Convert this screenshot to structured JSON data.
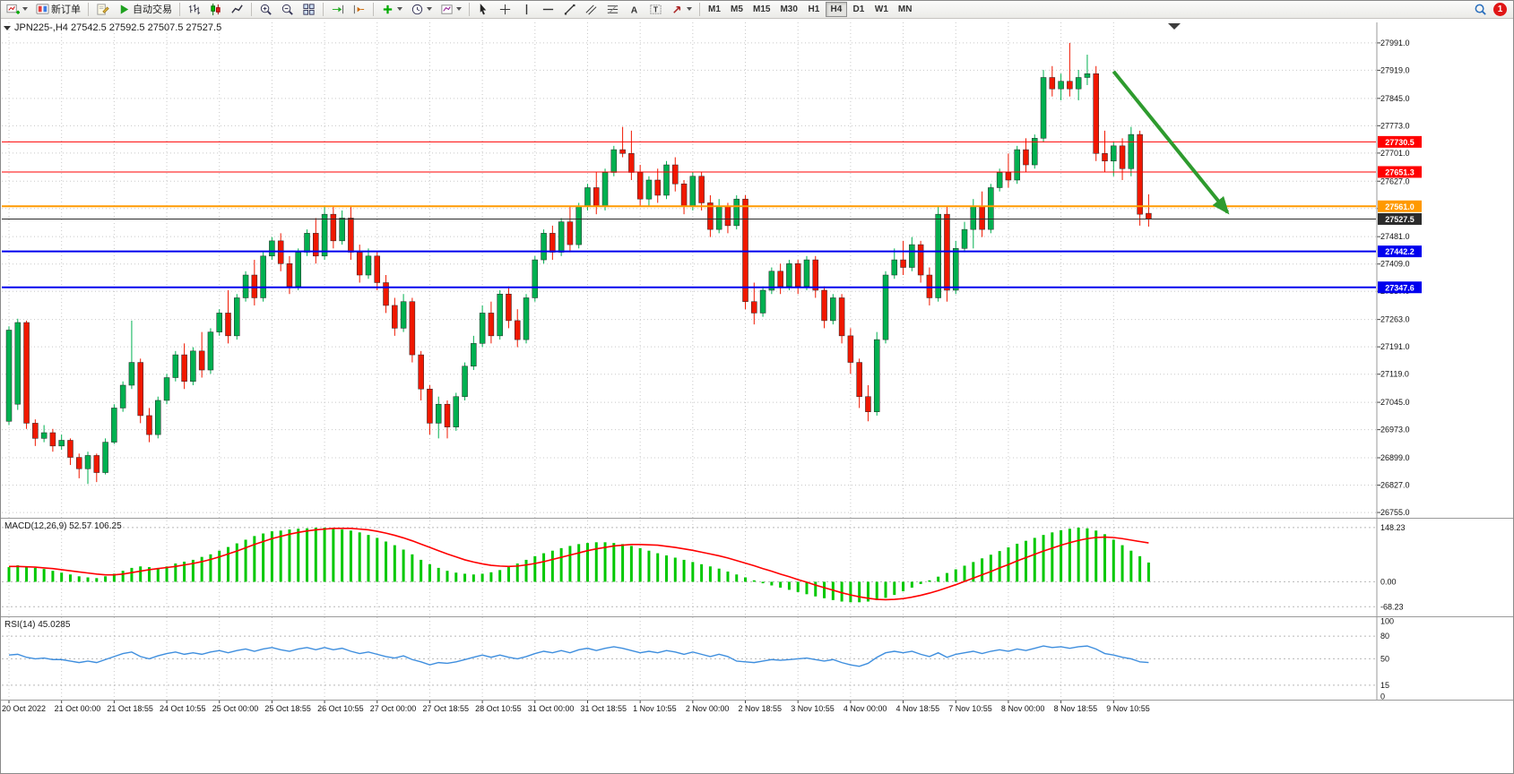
{
  "toolbar": {
    "new_order_label": "新订单",
    "auto_trading_label": "自动交易",
    "text_icon": "A",
    "label_icon": "T",
    "notification_count": "1",
    "timeframes": [
      {
        "label": "M1"
      },
      {
        "label": "M5"
      },
      {
        "label": "M15"
      },
      {
        "label": "M30"
      },
      {
        "label": "H1"
      },
      {
        "label": "H4"
      },
      {
        "label": "D1"
      },
      {
        "label": "W1"
      },
      {
        "label": "MN"
      }
    ]
  },
  "chart": {
    "legend": "JPN225-,H4 27542.5 27592.5 27507.5 27527.5"
  },
  "chart_data": {
    "type": "candlestick",
    "symbol": "JPN225-",
    "period": "H4",
    "ohlc": {
      "open": 27542.5,
      "high": 27592.5,
      "low": 27507.5,
      "close": 27527.5
    },
    "label_step": 6,
    "y_range": {
      "top": 28045,
      "bottom": 26741
    },
    "y_ticks": [
      27991,
      27919,
      27845,
      27773,
      27701,
      27627,
      27555,
      27481,
      27409,
      27337,
      27263,
      27191,
      27119,
      27045,
      26973,
      26899,
      26827,
      26755
    ],
    "h_lines": [
      {
        "price": 27730.5,
        "label": "27730.5",
        "color": "#ff0000",
        "width": 1
      },
      {
        "price": 27651.3,
        "label": "27651.3",
        "color": "#ff0000",
        "width": 1
      },
      {
        "price": 27561.0,
        "label": "27561.0",
        "color": "#ff9900",
        "width": 2
      },
      {
        "price": 27527.5,
        "label": "27527.5",
        "color": "#2b2b2b",
        "width": 1
      },
      {
        "price": 27442.2,
        "label": "27442.2",
        "color": "#0000ee",
        "width": 2
      },
      {
        "price": 27347.6,
        "label": "27347.6",
        "color": "#0000ee",
        "width": 2
      }
    ],
    "arrow": {
      "from_index": 126,
      "from_price": 27916,
      "to_index": 139,
      "to_price": 27545,
      "color": "#2e9b2e"
    },
    "colors": {
      "grid": "#c8c8c8",
      "candle_up": "#00b050",
      "candle_down": "#f01800",
      "macd_histogram": "#00c800",
      "macd_signal": "#ff0000",
      "rsi_line": "#3e8ede"
    },
    "time_labels": [
      "20 Oct 2022",
      "21 Oct 00:00",
      "21 Oct 18:55",
      "24 Oct 10:55",
      "25 Oct 00:00",
      "25 Oct 18:55",
      "26 Oct 10:55",
      "27 Oct 00:00",
      "27 Oct 18:55",
      "28 Oct 10:55",
      "31 Oct 00:00",
      "31 Oct 18:55",
      "1 Nov 10:55",
      "2 Nov 00:00",
      "2 Nov 18:55",
      "3 Nov 10:55",
      "4 Nov 00:00",
      "4 Nov 18:55",
      "7 Nov 10:55",
      "8 Nov 00:00",
      "8 Nov 18:55",
      "9 Nov 10:55"
    ],
    "candles": [
      [
        26995,
        27245,
        26985,
        27235
      ],
      [
        27040,
        27265,
        27025,
        27255
      ],
      [
        27255,
        27260,
        26975,
        26990
      ],
      [
        26990,
        27000,
        26930,
        26950
      ],
      [
        26950,
        26985,
        26940,
        26965
      ],
      [
        26965,
        26975,
        26915,
        26930
      ],
      [
        26930,
        26960,
        26920,
        26945
      ],
      [
        26945,
        26950,
        26880,
        26900
      ],
      [
        26900,
        26910,
        26845,
        26870
      ],
      [
        26870,
        26915,
        26830,
        26905
      ],
      [
        26905,
        26910,
        26835,
        26860
      ],
      [
        26860,
        26950,
        26855,
        26940
      ],
      [
        26940,
        27040,
        26935,
        27030
      ],
      [
        27030,
        27100,
        27020,
        27090
      ],
      [
        27090,
        27260,
        27080,
        27150
      ],
      [
        27150,
        27160,
        26990,
        27010
      ],
      [
        27010,
        27030,
        26940,
        26960
      ],
      [
        26960,
        27060,
        26950,
        27050
      ],
      [
        27050,
        27120,
        27040,
        27110
      ],
      [
        27110,
        27180,
        27100,
        27170
      ],
      [
        27170,
        27200,
        27080,
        27100
      ],
      [
        27100,
        27190,
        27090,
        27180
      ],
      [
        27180,
        27230,
        27110,
        27130
      ],
      [
        27130,
        27240,
        27120,
        27230
      ],
      [
        27230,
        27290,
        27220,
        27280
      ],
      [
        27280,
        27340,
        27200,
        27220
      ],
      [
        27220,
        27330,
        27210,
        27320
      ],
      [
        27320,
        27390,
        27310,
        27380
      ],
      [
        27380,
        27420,
        27300,
        27320
      ],
      [
        27320,
        27440,
        27310,
        27430
      ],
      [
        27430,
        27480,
        27420,
        27470
      ],
      [
        27470,
        27490,
        27390,
        27410
      ],
      [
        27410,
        27430,
        27330,
        27350
      ],
      [
        27350,
        27450,
        27340,
        27440
      ],
      [
        27440,
        27500,
        27430,
        27490
      ],
      [
        27490,
        27530,
        27410,
        27430
      ],
      [
        27430,
        27560,
        27420,
        27540
      ],
      [
        27540,
        27560,
        27450,
        27470
      ],
      [
        27470,
        27550,
        27460,
        27530
      ],
      [
        27530,
        27560,
        27420,
        27440
      ],
      [
        27440,
        27460,
        27360,
        27380
      ],
      [
        27380,
        27450,
        27370,
        27430
      ],
      [
        27430,
        27440,
        27340,
        27360
      ],
      [
        27360,
        27380,
        27280,
        27300
      ],
      [
        27300,
        27320,
        27220,
        27240
      ],
      [
        27240,
        27330,
        27230,
        27310
      ],
      [
        27310,
        27320,
        27150,
        27170
      ],
      [
        27170,
        27180,
        27050,
        27080
      ],
      [
        27080,
        27090,
        26960,
        26990
      ],
      [
        26990,
        27060,
        26950,
        27040
      ],
      [
        27040,
        27050,
        26950,
        26980
      ],
      [
        26980,
        27070,
        26970,
        27060
      ],
      [
        27060,
        27150,
        27050,
        27140
      ],
      [
        27140,
        27220,
        27130,
        27200
      ],
      [
        27200,
        27300,
        27190,
        27280
      ],
      [
        27280,
        27310,
        27200,
        27220
      ],
      [
        27220,
        27340,
        27210,
        27330
      ],
      [
        27330,
        27350,
        27240,
        27260
      ],
      [
        27260,
        27290,
        27190,
        27210
      ],
      [
        27210,
        27330,
        27200,
        27320
      ],
      [
        27320,
        27430,
        27310,
        27420
      ],
      [
        27420,
        27500,
        27410,
        27490
      ],
      [
        27490,
        27510,
        27420,
        27440
      ],
      [
        27440,
        27530,
        27430,
        27520
      ],
      [
        27520,
        27560,
        27440,
        27460
      ],
      [
        27460,
        27570,
        27450,
        27560
      ],
      [
        27560,
        27620,
        27550,
        27610
      ],
      [
        27610,
        27650,
        27540,
        27560
      ],
      [
        27560,
        27660,
        27550,
        27650
      ],
      [
        27650,
        27720,
        27640,
        27710
      ],
      [
        27710,
        27770,
        27690,
        27700
      ],
      [
        27700,
        27760,
        27630,
        27650
      ],
      [
        27650,
        27670,
        27560,
        27580
      ],
      [
        27580,
        27640,
        27560,
        27630
      ],
      [
        27630,
        27660,
        27570,
        27590
      ],
      [
        27590,
        27680,
        27580,
        27670
      ],
      [
        27670,
        27690,
        27600,
        27620
      ],
      [
        27620,
        27630,
        27540,
        27560
      ],
      [
        27560,
        27650,
        27550,
        27640
      ],
      [
        27640,
        27650,
        27550,
        27570
      ],
      [
        27570,
        27590,
        27480,
        27500
      ],
      [
        27500,
        27580,
        27490,
        27560
      ],
      [
        27560,
        27570,
        27490,
        27510
      ],
      [
        27510,
        27590,
        27500,
        27580
      ],
      [
        27580,
        27590,
        27290,
        27310
      ],
      [
        27310,
        27360,
        27250,
        27280
      ],
      [
        27280,
        27350,
        27270,
        27340
      ],
      [
        27340,
        27400,
        27330,
        27390
      ],
      [
        27390,
        27410,
        27330,
        27350
      ],
      [
        27350,
        27420,
        27340,
        27410
      ],
      [
        27410,
        27420,
        27330,
        27350
      ],
      [
        27350,
        27430,
        27340,
        27420
      ],
      [
        27420,
        27430,
        27320,
        27340
      ],
      [
        27340,
        27350,
        27240,
        27260
      ],
      [
        27260,
        27330,
        27250,
        27320
      ],
      [
        27320,
        27330,
        27200,
        27220
      ],
      [
        27220,
        27240,
        27120,
        27150
      ],
      [
        27150,
        27160,
        27030,
        27060
      ],
      [
        27060,
        27090,
        26995,
        27020
      ],
      [
        27020,
        27230,
        27010,
        27210
      ],
      [
        27210,
        27390,
        27200,
        27380
      ],
      [
        27380,
        27450,
        27370,
        27420
      ],
      [
        27420,
        27470,
        27380,
        27400
      ],
      [
        27400,
        27480,
        27390,
        27460
      ],
      [
        27460,
        27470,
        27360,
        27380
      ],
      [
        27380,
        27400,
        27300,
        27320
      ],
      [
        27320,
        27560,
        27310,
        27540
      ],
      [
        27540,
        27560,
        27310,
        27340
      ],
      [
        27340,
        27470,
        27330,
        27450
      ],
      [
        27450,
        27520,
        27440,
        27500
      ],
      [
        27500,
        27580,
        27450,
        27560
      ],
      [
        27560,
        27600,
        27480,
        27500
      ],
      [
        27500,
        27620,
        27490,
        27610
      ],
      [
        27610,
        27660,
        27600,
        27650
      ],
      [
        27650,
        27700,
        27610,
        27630
      ],
      [
        27630,
        27720,
        27620,
        27710
      ],
      [
        27710,
        27740,
        27650,
        27670
      ],
      [
        27670,
        27750,
        27660,
        27740
      ],
      [
        27740,
        27920,
        27730,
        27900
      ],
      [
        27900,
        27930,
        27850,
        27870
      ],
      [
        27870,
        27910,
        27840,
        27890
      ],
      [
        27890,
        27991,
        27850,
        27870
      ],
      [
        27870,
        27920,
        27840,
        27900
      ],
      [
        27900,
        27960,
        27880,
        27910
      ],
      [
        27910,
        27930,
        27680,
        27700
      ],
      [
        27700,
        27760,
        27650,
        27680
      ],
      [
        27680,
        27730,
        27640,
        27720
      ],
      [
        27720,
        27740,
        27630,
        27660
      ],
      [
        27660,
        27770,
        27640,
        27750
      ],
      [
        27750,
        27760,
        27510,
        27540
      ],
      [
        27542.5,
        27592.5,
        27507.5,
        27527.5
      ]
    ],
    "indicators": {
      "macd": {
        "legend": "MACD(12,26,9) 52.57 106.25",
        "y_ticks": [
          148.23,
          0,
          -68.23
        ],
        "range": {
          "top": 170,
          "bottom": -92
        },
        "histogram": [
          40,
          45,
          42,
          38,
          35,
          30,
          25,
          20,
          15,
          12,
          10,
          15,
          22,
          30,
          38,
          42,
          40,
          38,
          42,
          50,
          55,
          60,
          68,
          75,
          85,
          95,
          105,
          115,
          125,
          132,
          138,
          140,
          143,
          145,
          146,
          148,
          148,
          146,
          143,
          140,
          135,
          128,
          120,
          110,
          100,
          88,
          75,
          60,
          48,
          38,
          30,
          25,
          22,
          20,
          22,
          26,
          32,
          40,
          50,
          60,
          70,
          78,
          85,
          92,
          98,
          103,
          106,
          108,
          108,
          106,
          103,
          98,
          92,
          85,
          78,
          72,
          66,
          60,
          54,
          48,
          42,
          36,
          28,
          20,
          12,
          4,
          -4,
          -10,
          -16,
          -22,
          -28,
          -34,
          -40,
          -45,
          -50,
          -54,
          -56,
          -56,
          -54,
          -50,
          -44,
          -36,
          -26,
          -16,
          -6,
          4,
          14,
          24,
          34,
          44,
          54,
          64,
          74,
          84,
          94,
          104,
          112,
          120,
          128,
          135,
          141,
          145,
          148,
          146,
          140,
          130,
          115,
          100,
          85,
          70,
          52.57
        ],
        "signal": [
          42,
          42,
          41,
          40,
          38,
          36,
          33,
          30,
          27,
          24,
          21,
          19,
          19,
          21,
          25,
          29,
          33,
          36,
          39,
          42,
          46,
          50,
          55,
          61,
          68,
          76,
          84,
          93,
          102,
          110,
          118,
          124,
          130,
          135,
          139,
          142,
          144,
          146,
          146,
          146,
          144,
          142,
          138,
          133,
          127,
          120,
          112,
          103,
          94,
          85,
          76,
          68,
          60,
          54,
          49,
          45,
          43,
          42,
          43,
          46,
          50,
          55,
          61,
          67,
          73,
          79,
          85,
          90,
          94,
          98,
          100,
          102,
          102,
          101,
          100,
          97,
          94,
          90,
          86,
          81,
          76,
          71,
          65,
          58,
          51,
          44,
          36,
          29,
          21,
          14,
          6,
          -1,
          -9,
          -16,
          -23,
          -30,
          -36,
          -41,
          -45,
          -48,
          -49,
          -48,
          -46,
          -42,
          -37,
          -31,
          -24,
          -16,
          -8,
          1,
          10,
          19,
          28,
          38,
          47,
          57,
          66,
          75,
          84,
          92,
          100,
          107,
          113,
          118,
          121,
          122,
          121,
          118,
          114,
          110,
          106.25
        ]
      },
      "rsi": {
        "legend": "RSI(14) 45.0285",
        "y_ticks": [
          100,
          80,
          50,
          15,
          0
        ],
        "levels": [
          80,
          50,
          15
        ],
        "range": {
          "top": 104,
          "bottom": -3
        },
        "values": [
          55,
          56,
          52,
          50,
          51,
          49,
          49,
          47,
          45,
          47,
          45,
          49,
          53,
          57,
          59,
          53,
          50,
          54,
          57,
          59,
          56,
          58,
          56,
          59,
          61,
          58,
          61,
          63,
          60,
          63,
          65,
          62,
          60,
          63,
          65,
          62,
          65,
          62,
          64,
          60,
          57,
          59,
          56,
          53,
          51,
          54,
          49,
          46,
          42,
          45,
          44,
          46,
          49,
          52,
          55,
          52,
          55,
          52,
          50,
          53,
          57,
          60,
          58,
          61,
          58,
          62,
          64,
          61,
          64,
          66,
          64,
          61,
          58,
          60,
          58,
          61,
          59,
          56,
          59,
          56,
          53,
          56,
          53,
          47,
          46,
          45,
          47,
          49,
          48,
          49,
          50,
          51,
          49,
          47,
          49,
          45,
          42,
          40,
          44,
          52,
          58,
          60,
          58,
          60,
          56,
          53,
          58,
          52,
          56,
          58,
          60,
          57,
          60,
          62,
          60,
          63,
          61,
          64,
          67,
          65,
          66,
          64,
          66,
          67,
          63,
          57,
          55,
          52,
          50,
          46,
          45.03
        ]
      }
    }
  }
}
